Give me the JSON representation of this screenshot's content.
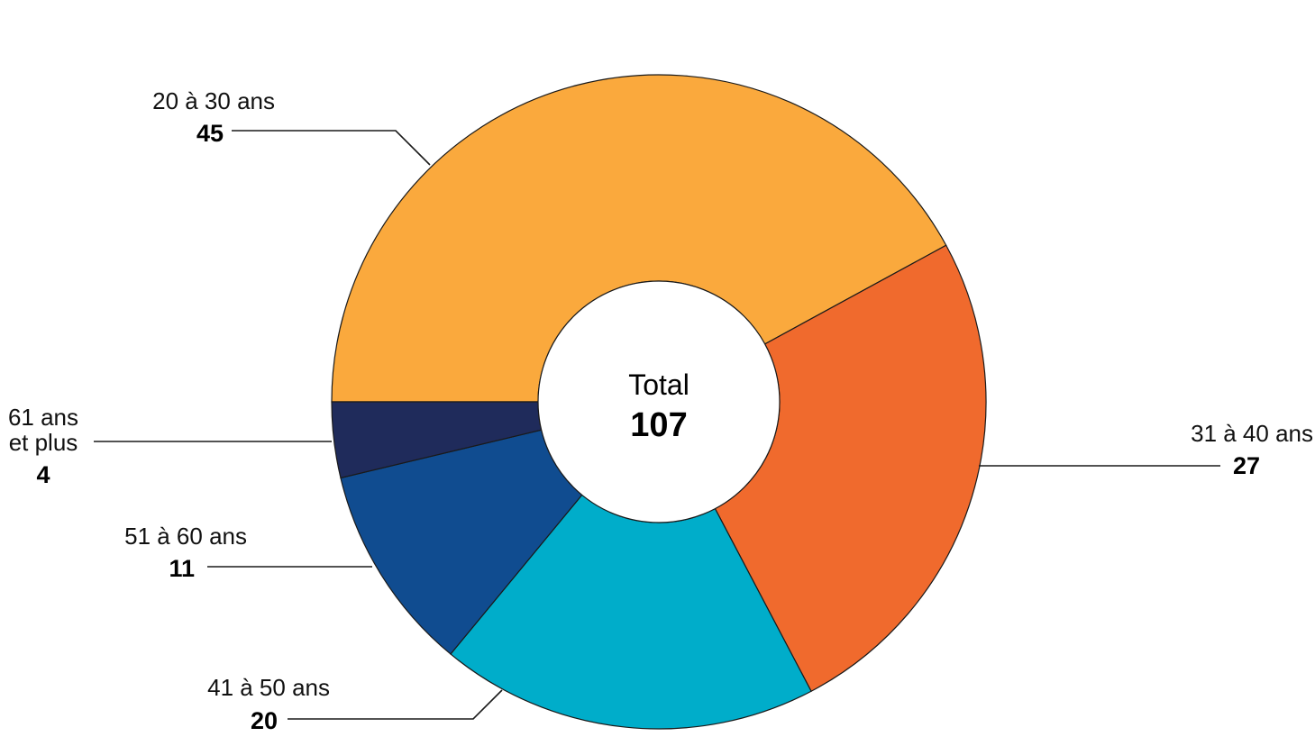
{
  "chart_data": {
    "type": "pie",
    "style": "donut",
    "center_label": "Total",
    "total": 107,
    "slices": [
      {
        "label": "20 à 30 ans",
        "value": 45,
        "color": "#FAA93D"
      },
      {
        "label": "31 à 40 ans",
        "value": 27,
        "color": "#F06A2D"
      },
      {
        "label": "41 à 50 ans",
        "value": 20,
        "color": "#00ADCA"
      },
      {
        "label": "51 à 60 ans",
        "value": 11,
        "color": "#104C90"
      },
      {
        "label": "61 ans et plus",
        "label_lines": [
          "61 ans",
          "et plus"
        ],
        "value": 4,
        "color": "#1F2B5B"
      }
    ]
  }
}
